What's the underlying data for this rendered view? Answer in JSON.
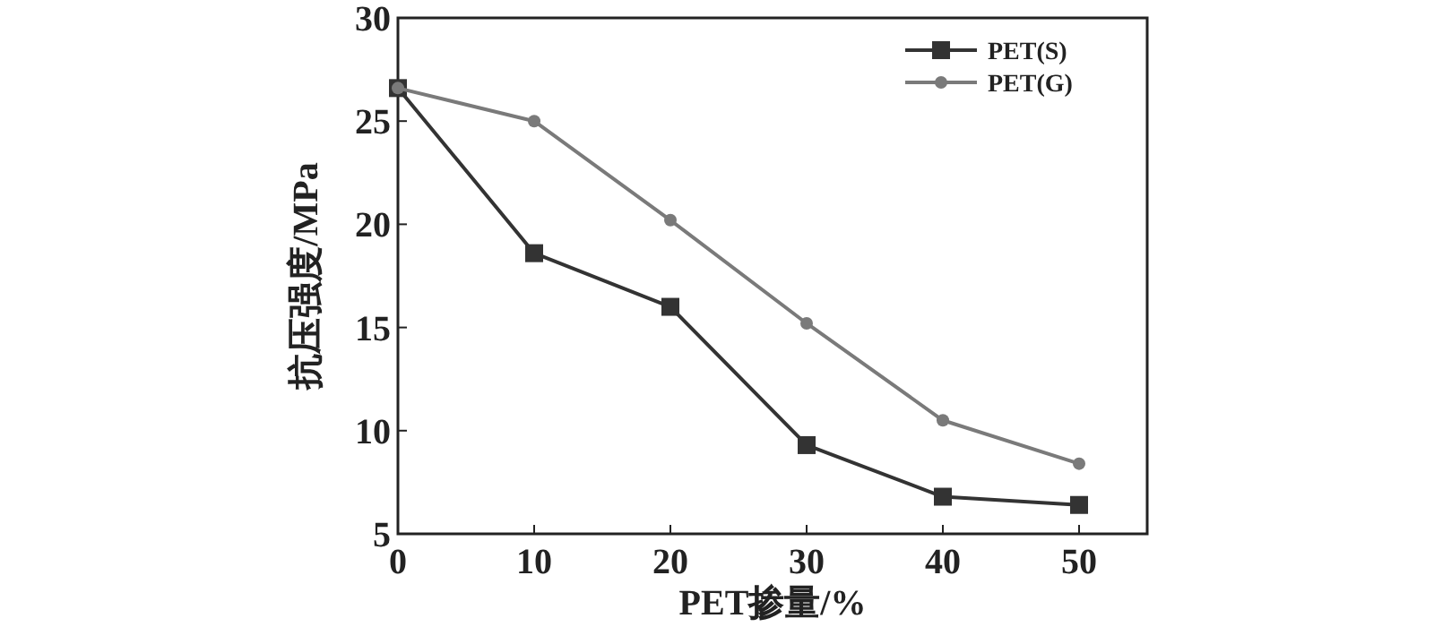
{
  "chart_data": {
    "type": "line",
    "xlabel": "PET掺量/%",
    "ylabel": "抗压强度/MPa",
    "x": [
      0,
      10,
      20,
      30,
      40,
      50
    ],
    "series": [
      {
        "name": "PET(S)",
        "color": "#333333",
        "marker": "square",
        "values": [
          26.6,
          18.6,
          16.0,
          9.3,
          6.8,
          6.4
        ]
      },
      {
        "name": "PET(G)",
        "color": "#7a7a7a",
        "marker": "circle",
        "values": [
          26.6,
          25.0,
          20.2,
          15.2,
          10.5,
          8.4
        ]
      }
    ],
    "xlim": [
      0,
      55
    ],
    "ylim": [
      5,
      30
    ],
    "xticks": [
      0,
      10,
      20,
      30,
      40,
      50
    ],
    "yticks": [
      5,
      10,
      15,
      20,
      25,
      30
    ],
    "legend": "top right",
    "grid": false,
    "line_style": "solid"
  }
}
